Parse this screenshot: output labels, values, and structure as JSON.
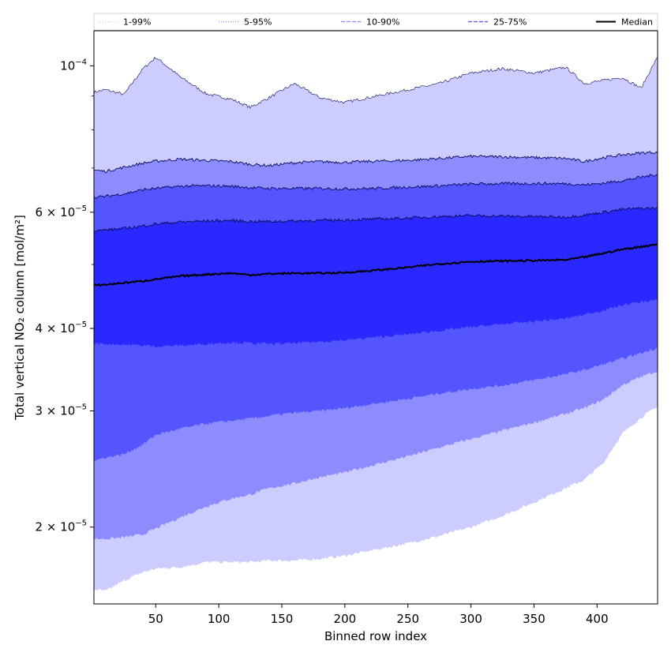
{
  "chart_data": {
    "type": "area",
    "xlabel": "Binned row index",
    "ylabel": "Total vertical NO₂ column [mol/m²]",
    "scale": {
      "y": "log"
    },
    "xlim": [
      1,
      448
    ],
    "ylim": [
      1.53e-05,
      0.000113
    ],
    "x_ticks": [
      50,
      100,
      150,
      200,
      250,
      300,
      350,
      400
    ],
    "y_ticks": [
      {
        "value": 2e-05,
        "mantissa": "2",
        "power": "−5"
      },
      {
        "value": 3e-05,
        "mantissa": "3",
        "power": "−5"
      },
      {
        "value": 4e-05,
        "mantissa": "4",
        "power": "−5"
      },
      {
        "value": 6e-05,
        "mantissa": "6",
        "power": "−5"
      },
      {
        "value": 0.0001,
        "mantissa": "",
        "power": "−4"
      }
    ],
    "y_tick_base": "10",
    "y_minor_ticks": [
      5e-05,
      7e-05,
      8e-05,
      9e-05
    ],
    "legend": {
      "placement": "top",
      "entries": [
        {
          "label": "1-99%",
          "color": "#ccccff",
          "style": "dotted"
        },
        {
          "label": "5-95%",
          "color": "#8c8cff",
          "style": "dotted"
        },
        {
          "label": "10-90%",
          "color": "#8c8cff",
          "style": "dashed"
        },
        {
          "label": "25-75%",
          "color": "#5555ff",
          "style": "dashed"
        },
        {
          "label": "Median",
          "color": "#000000",
          "style": "solid"
        }
      ]
    },
    "x": [
      1,
      10,
      25,
      40,
      50,
      70,
      90,
      110,
      125,
      140,
      160,
      180,
      200,
      225,
      250,
      275,
      300,
      325,
      350,
      375,
      390,
      405,
      420,
      435,
      448
    ],
    "bands": [
      {
        "name": "1-99%",
        "color": "#ccccff",
        "lower": [
          1.61e-05,
          1.6e-05,
          1.66e-05,
          1.71e-05,
          1.73e-05,
          1.74e-05,
          1.77e-05,
          1.77e-05,
          1.77e-05,
          1.78e-05,
          1.78e-05,
          1.79e-05,
          1.81e-05,
          1.85e-05,
          1.89e-05,
          1.94e-05,
          2e-05,
          2.08e-05,
          2.18e-05,
          2.29e-05,
          2.36e-05,
          2.5e-05,
          2.77e-05,
          2.93e-05,
          3.05e-05
        ],
        "upper": [
          9.12e-05,
          9.2e-05,
          9.05e-05,
          9.9e-05,
          0.000103,
          9.6e-05,
          9.07e-05,
          8.9e-05,
          8.65e-05,
          8.95e-05,
          9.4e-05,
          8.95e-05,
          8.8e-05,
          9e-05,
          9.2e-05,
          9.4e-05,
          9.75e-05,
          9.9e-05,
          9.75e-05,
          9.95e-05,
          9.4e-05,
          9.5e-05,
          9.6e-05,
          9.25e-05,
          0.000103
        ]
      },
      {
        "name": "5-95%",
        "color": "#8c8cff",
        "lower": [
          1.92e-05,
          1.92e-05,
          1.93e-05,
          1.95e-05,
          1.99e-05,
          2.07e-05,
          2.15e-05,
          2.21e-05,
          2.24e-05,
          2.29e-05,
          2.33e-05,
          2.38e-05,
          2.42e-05,
          2.49e-05,
          2.56e-05,
          2.64e-05,
          2.72e-05,
          2.8e-05,
          2.88e-05,
          2.97e-05,
          3.03e-05,
          3.12e-05,
          3.28e-05,
          3.38e-05,
          3.45e-05
        ],
        "upper": [
          6.95e-05,
          6.92e-05,
          7.02e-05,
          7.12e-05,
          7.17e-05,
          7.22e-05,
          7.19e-05,
          7.16e-05,
          7.09e-05,
          7.06e-05,
          7.13e-05,
          7.16e-05,
          7.14e-05,
          7.17e-05,
          7.19e-05,
          7.24e-05,
          7.29e-05,
          7.28e-05,
          7.26e-05,
          7.24e-05,
          7.16e-05,
          7.26e-05,
          7.33e-05,
          7.38e-05,
          7.4e-05
        ]
      },
      {
        "name": "10-90%",
        "color": "#5555ff",
        "lower": [
          2.52e-05,
          2.55e-05,
          2.58e-05,
          2.67e-05,
          2.76e-05,
          2.82e-05,
          2.87e-05,
          2.9e-05,
          2.92e-05,
          2.95e-05,
          2.98e-05,
          3e-05,
          3.03e-05,
          3.08e-05,
          3.13e-05,
          3.19e-05,
          3.24e-05,
          3.28e-05,
          3.34e-05,
          3.41e-05,
          3.46e-05,
          3.53e-05,
          3.6e-05,
          3.67e-05,
          3.74e-05
        ],
        "upper": [
          6.32e-05,
          6.34e-05,
          6.4e-05,
          6.49e-05,
          6.52e-05,
          6.57e-05,
          6.58e-05,
          6.57e-05,
          6.54e-05,
          6.52e-05,
          6.52e-05,
          6.52e-05,
          6.51e-05,
          6.52e-05,
          6.55e-05,
          6.58e-05,
          6.62e-05,
          6.63e-05,
          6.63e-05,
          6.63e-05,
          6.6e-05,
          6.64e-05,
          6.7e-05,
          6.78e-05,
          6.85e-05
        ]
      },
      {
        "name": "25-75%",
        "color": "#2828ff",
        "lower": [
          3.8e-05,
          3.79e-05,
          3.78e-05,
          3.77e-05,
          3.76e-05,
          3.77e-05,
          3.79e-05,
          3.81e-05,
          3.8e-05,
          3.79e-05,
          3.8e-05,
          3.82e-05,
          3.84e-05,
          3.88e-05,
          3.92e-05,
          3.97e-05,
          4.02e-05,
          4.06e-05,
          4.1e-05,
          4.14e-05,
          4.2e-05,
          4.26e-05,
          4.34e-05,
          4.39e-05,
          4.42e-05
        ],
        "upper": [
          5.62e-05,
          5.64e-05,
          5.67e-05,
          5.72e-05,
          5.76e-05,
          5.8e-05,
          5.82e-05,
          5.83e-05,
          5.81e-05,
          5.81e-05,
          5.82e-05,
          5.83e-05,
          5.84e-05,
          5.86e-05,
          5.88e-05,
          5.91e-05,
          5.93e-05,
          5.92e-05,
          5.91e-05,
          5.9e-05,
          5.94e-05,
          6e-05,
          6.06e-05,
          6.08e-05,
          6.09e-05
        ]
      }
    ],
    "series": [
      {
        "name": "Median",
        "color": "#000000",
        "values": [
          4.65e-05,
          4.66e-05,
          4.69e-05,
          4.72e-05,
          4.75e-05,
          4.8e-05,
          4.83e-05,
          4.85e-05,
          4.82e-05,
          4.84e-05,
          4.85e-05,
          4.85e-05,
          4.86e-05,
          4.9e-05,
          4.95e-05,
          5.01e-05,
          5.05e-05,
          5.06e-05,
          5.07e-05,
          5.08e-05,
          5.13e-05,
          5.2e-05,
          5.27e-05,
          5.32e-05,
          5.37e-05
        ]
      }
    ]
  }
}
